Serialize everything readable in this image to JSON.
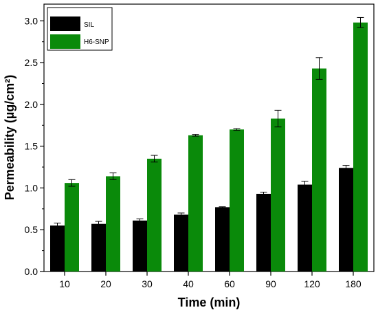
{
  "chart_data": {
    "type": "bar",
    "title": "",
    "xlabel": "Time (min)",
    "ylabel": "Permeability (µg/cm²)",
    "ylim": [
      0,
      3.2
    ],
    "yticks": [
      "0.0",
      "0.5",
      "1.0",
      "1.5",
      "2.0",
      "2.5",
      "3.0"
    ],
    "categories": [
      "10",
      "20",
      "30",
      "40",
      "60",
      "90",
      "120",
      "180"
    ],
    "series": [
      {
        "name": "SIL",
        "color": "#000000",
        "values": [
          0.55,
          0.57,
          0.61,
          0.68,
          0.77,
          0.93,
          1.04,
          1.24
        ],
        "errors": [
          0.03,
          0.03,
          0.02,
          0.02,
          0.005,
          0.02,
          0.04,
          0.03
        ]
      },
      {
        "name": "H6-SNP",
        "color": "#0a8a0a",
        "values": [
          1.06,
          1.14,
          1.35,
          1.63,
          1.7,
          1.83,
          2.43,
          2.98
        ],
        "errors": [
          0.04,
          0.04,
          0.04,
          0.01,
          0.01,
          0.1,
          0.13,
          0.06
        ]
      }
    ],
    "legend_position": "top-left",
    "grid": false
  }
}
